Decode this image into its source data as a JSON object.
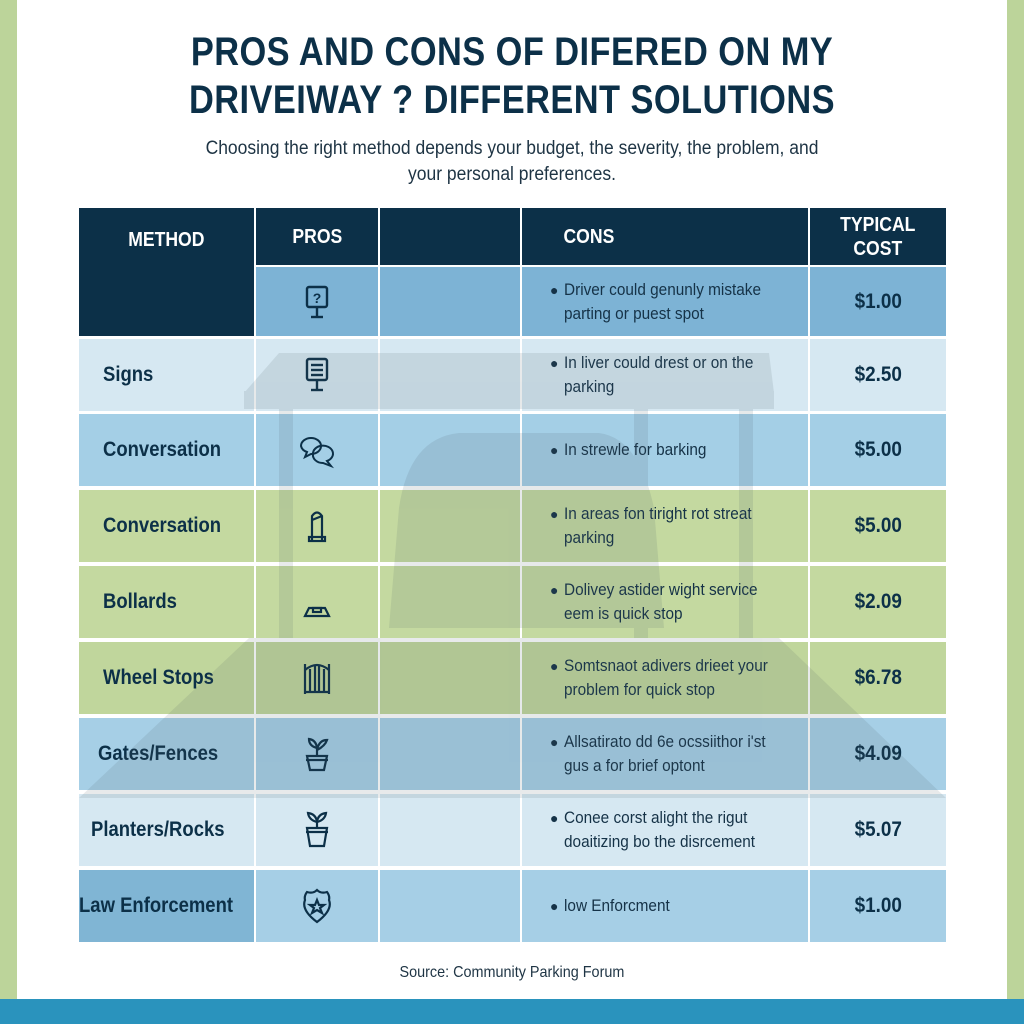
{
  "title_line1": "PROS AND CONS OF DIFERED ON MY",
  "title_line2": "DRIVEIWAY ? DIFFERENT SOLUTIONS",
  "subtitle_line1": "Choosing the right method depends your budget, the severity, the problem, and",
  "subtitle_line2": "your personal preferences.",
  "table": {
    "headers": {
      "method": "METHOD",
      "pros": "PROS",
      "pros_extra": "",
      "cons": "CONS",
      "cost_line1": "TYPICAL",
      "cost_line2": "COST"
    },
    "rows": [
      {
        "method": "",
        "icon": "sign-question-icon",
        "cons": "Driver could genunly mistake parting or puest spot",
        "cost": "$1.00",
        "color": "#7db3d5",
        "method_color": "#0c3048"
      },
      {
        "method": "Signs",
        "icon": "sign-board-icon",
        "cons": "In liver could drest or on the parking",
        "cost": "$2.50",
        "color": "#d6e8f2",
        "method_color": "#d6e8f2"
      },
      {
        "method": "Conversation",
        "icon": "chat-bubbles-icon",
        "cons": "In strewle for barking",
        "cost": "$5.00",
        "color": "#a4cfe6",
        "method_color": "#a4cfe6"
      },
      {
        "method": "Conversation",
        "icon": "bollard-icon",
        "cons": "In areas fon tiright rot streat parking",
        "cost": "$5.00",
        "color": "#c4d9a0",
        "method_color": "#c4d9a0"
      },
      {
        "method": "Bollards",
        "icon": "wheel-stop-icon",
        "cons": "Dolivey astider wight service eem is quick stop",
        "cost": "$2.09",
        "color": "#c4d9a0",
        "method_color": "#c4d9a0"
      },
      {
        "method": "Wheel Stops",
        "icon": "gate-icon",
        "cons": "Somtsnaot adivers drieet your problem for quick stop",
        "cost": "$6.78",
        "color": "#c0d69c",
        "method_color": "#c0d69c"
      },
      {
        "method": "Gates/Fences",
        "icon": "plant-pot-icon",
        "cons": "Allsatirato dd 6e ocssiithor i'st gus a for brief optont",
        "cost": "$4.09",
        "color": "#a6cfe6",
        "method_color": "#a6cfe6"
      },
      {
        "method": "Planters/Rocks",
        "icon": "planter-icon",
        "cons": "Conee corst alight the rigut doaitizing bo the disrcement",
        "cost": "$5.07",
        "color": "#d6e8f2",
        "method_color": "#d6e8f2"
      },
      {
        "method": "Law Enforcement",
        "icon": "police-badge-icon",
        "cons": "low Enforcment",
        "cost": "$1.00",
        "color": "#a6cfe6",
        "method_color": "#80b5d4"
      }
    ]
  },
  "source": "Source: Community Parking Forum",
  "colors": {
    "navy": "#0c3048",
    "green_strip": "#bcd49a",
    "bottom_bar": "#2a93bd"
  }
}
